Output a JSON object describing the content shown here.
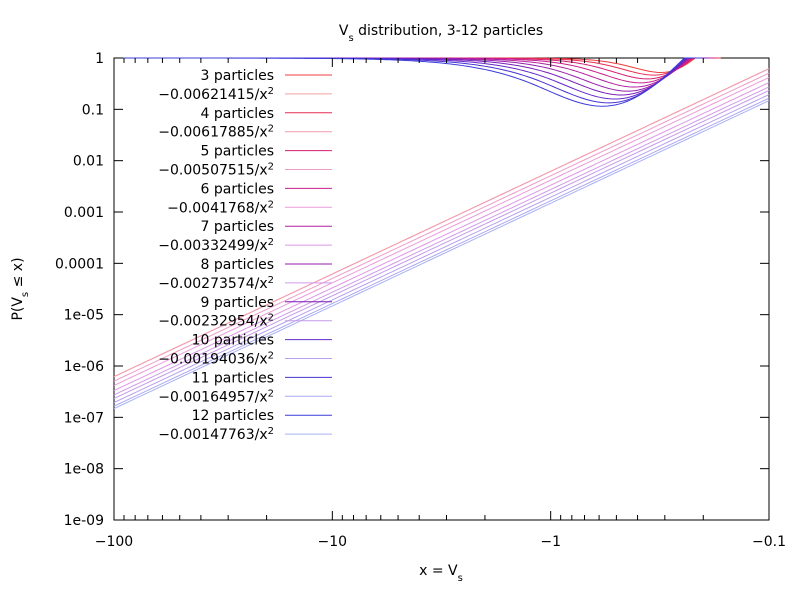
{
  "chart_data": {
    "type": "line",
    "title": {
      "base": "V",
      "sub": "s",
      "rest": " distribution, 3-12 particles"
    },
    "xlabel": {
      "base": "x = V",
      "sub": "s"
    },
    "ylabel": {
      "pre": "P(V",
      "sub": "s",
      "post": " ≤ x)"
    },
    "x_axis": {
      "scale": "symlog-negative",
      "range": [
        -100,
        -0.1
      ],
      "ticks": [
        "−100",
        "−10",
        "−1",
        "−0.1"
      ]
    },
    "y_axis": {
      "scale": "log",
      "range": [
        1e-09,
        1
      ],
      "ticks": [
        "1",
        "0.1",
        "0.01",
        "0.001",
        "0.0001",
        "1e-05",
        "1e-06",
        "1e-07",
        "1e-08",
        "1e-09"
      ]
    },
    "legend_position": "top-left",
    "series": [
      {
        "name": "3 particles",
        "particles": 3,
        "kind": "empirical",
        "color": "#f03c3c"
      },
      {
        "name": "−0.00621415/x²",
        "coef": 0.00621415,
        "kind": "fit",
        "color": "#f4a0a0"
      },
      {
        "name": "4 particles",
        "particles": 4,
        "kind": "empirical",
        "color": "#ea2c55"
      },
      {
        "name": "−0.00617885/x²",
        "coef": 0.00617885,
        "kind": "fit",
        "color": "#f29bb0"
      },
      {
        "name": "5 particles",
        "particles": 5,
        "kind": "empirical",
        "color": "#d21e72"
      },
      {
        "name": "−0.00507515/x²",
        "coef": 0.00507515,
        "kind": "fit",
        "color": "#ee9ccb"
      },
      {
        "name": "6 particles",
        "particles": 6,
        "kind": "empirical",
        "color": "#c81e8c"
      },
      {
        "name": "−0.0041768/x²",
        "coef": 0.0041768,
        "kind": "fit",
        "color": "#ea9adc"
      },
      {
        "name": "7 particles",
        "particles": 7,
        "kind": "empirical",
        "color": "#b41ea0"
      },
      {
        "name": "−0.00332499/x²",
        "coef": 0.00332499,
        "kind": "fit",
        "color": "#de96e6"
      },
      {
        "name": "8 particles",
        "particles": 8,
        "kind": "empirical",
        "color": "#961ead"
      },
      {
        "name": "−0.00273574/x²",
        "coef": 0.00273574,
        "kind": "fit",
        "color": "#d29ae8"
      },
      {
        "name": "9 particles",
        "particles": 9,
        "kind": "empirical",
        "color": "#781eb9"
      },
      {
        "name": "−0.00232954/x²",
        "coef": 0.00232954,
        "kind": "fit",
        "color": "#c49aea"
      },
      {
        "name": "10 particles",
        "particles": 10,
        "kind": "empirical",
        "color": "#6428c8"
      },
      {
        "name": "−0.00194036/x²",
        "coef": 0.00194036,
        "kind": "fit",
        "color": "#b8a0ee"
      },
      {
        "name": "11 particles",
        "particles": 11,
        "kind": "empirical",
        "color": "#4632d2"
      },
      {
        "name": "−0.00164957/x²",
        "coef": 0.00164957,
        "kind": "fit",
        "color": "#aca8f0"
      },
      {
        "name": "12 particles",
        "particles": 12,
        "kind": "empirical",
        "color": "#3c3cdc"
      },
      {
        "name": "−0.00147763/x²",
        "coef": 0.00147763,
        "kind": "fit",
        "color": "#a8b0f4"
      }
    ]
  }
}
